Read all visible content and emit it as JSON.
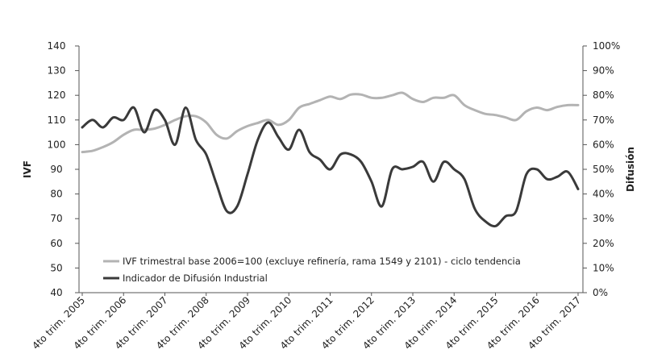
{
  "chart_data": {
    "type": "line",
    "title": "",
    "ylabel": "IVF",
    "y2label": "Difusión",
    "ylim": [
      40,
      140
    ],
    "y2lim": [
      0,
      100
    ],
    "yticks": [
      "40",
      "50",
      "60",
      "70",
      "80",
      "90",
      "100",
      "110",
      "120",
      "130",
      "140"
    ],
    "y2ticks": [
      "0%",
      "10%",
      "20%",
      "30%",
      "40%",
      "50%",
      "60%",
      "70%",
      "80%",
      "90%",
      "100%"
    ],
    "xlabels": [
      "4to trim. 2005",
      "4to trim. 2006",
      "4to trim. 2007",
      "4to trim. 2008",
      "4to trim. 2009",
      "4to trim. 2010",
      "4to trim. 2011",
      "4to trim. 2012",
      "4to trim. 2013",
      "4to trim. 2014",
      "4to trim. 2015",
      "4to trim. 2016",
      "4to trim. 2017"
    ],
    "grid": false,
    "legend_position": "bottom-left",
    "series": [
      {
        "name": "IVF trimestral base 2006=100 (excluye refinería, rama 1549 y 2101) - ciclo tendencia",
        "axis": "left",
        "color": "#b3b3b3",
        "points": [
          [
            0,
            97
          ],
          [
            0.25,
            97.5
          ],
          [
            0.5,
            99
          ],
          [
            0.75,
            101
          ],
          [
            1,
            104
          ],
          [
            1.25,
            106
          ],
          [
            1.5,
            106
          ],
          [
            1.75,
            106.5
          ],
          [
            2,
            108
          ],
          [
            2.25,
            110
          ],
          [
            2.5,
            111.5
          ],
          [
            2.75,
            111.5
          ],
          [
            3,
            109
          ],
          [
            3.25,
            104
          ],
          [
            3.5,
            102.5
          ],
          [
            3.75,
            105.5
          ],
          [
            4,
            107.5
          ],
          [
            4.25,
            108.8
          ],
          [
            4.5,
            110
          ],
          [
            4.75,
            108
          ],
          [
            5,
            110
          ],
          [
            5.25,
            115
          ],
          [
            5.5,
            116.5
          ],
          [
            5.75,
            118
          ],
          [
            6,
            119.5
          ],
          [
            6.25,
            118.5
          ],
          [
            6.5,
            120.3
          ],
          [
            6.75,
            120.3
          ],
          [
            7,
            119
          ],
          [
            7.25,
            119
          ],
          [
            7.5,
            120
          ],
          [
            7.75,
            121
          ],
          [
            8,
            118.5
          ],
          [
            8.25,
            117.3
          ],
          [
            8.5,
            119
          ],
          [
            8.75,
            119
          ],
          [
            9,
            120
          ],
          [
            9.25,
            116
          ],
          [
            9.5,
            114
          ],
          [
            9.75,
            112.5
          ],
          [
            10,
            112
          ],
          [
            10.25,
            111
          ],
          [
            10.5,
            110
          ],
          [
            10.75,
            113.5
          ],
          [
            11,
            115
          ],
          [
            11.25,
            114
          ],
          [
            11.5,
            115.3
          ],
          [
            11.75,
            116
          ],
          [
            12,
            116
          ]
        ]
      },
      {
        "name": "Indicador de Difusión Industrial",
        "axis": "right",
        "color": "#3a3a3a",
        "points": [
          [
            0,
            67
          ],
          [
            0.25,
            70
          ],
          [
            0.5,
            67
          ],
          [
            0.75,
            71
          ],
          [
            1,
            70
          ],
          [
            1.25,
            75
          ],
          [
            1.5,
            65
          ],
          [
            1.75,
            74
          ],
          [
            2,
            70
          ],
          [
            2.25,
            60
          ],
          [
            2.5,
            75
          ],
          [
            2.75,
            62
          ],
          [
            3,
            56
          ],
          [
            3.25,
            44
          ],
          [
            3.5,
            33
          ],
          [
            3.75,
            35
          ],
          [
            4,
            48
          ],
          [
            4.25,
            62
          ],
          [
            4.5,
            69
          ],
          [
            4.75,
            63
          ],
          [
            5,
            58
          ],
          [
            5.25,
            66
          ],
          [
            5.5,
            57
          ],
          [
            5.75,
            54
          ],
          [
            6,
            50
          ],
          [
            6.25,
            56
          ],
          [
            6.5,
            56
          ],
          [
            6.75,
            53
          ],
          [
            7,
            45
          ],
          [
            7.25,
            35
          ],
          [
            7.5,
            50
          ],
          [
            7.75,
            50
          ],
          [
            8,
            51
          ],
          [
            8.25,
            53
          ],
          [
            8.5,
            45
          ],
          [
            8.75,
            53
          ],
          [
            9,
            50
          ],
          [
            9.25,
            46
          ],
          [
            9.5,
            34
          ],
          [
            9.75,
            29
          ],
          [
            10,
            27
          ],
          [
            10.25,
            31
          ],
          [
            10.5,
            33
          ],
          [
            10.75,
            48
          ],
          [
            11,
            50
          ],
          [
            11.25,
            46
          ],
          [
            11.5,
            47
          ],
          [
            11.75,
            49
          ],
          [
            12,
            42
          ]
        ]
      }
    ]
  }
}
